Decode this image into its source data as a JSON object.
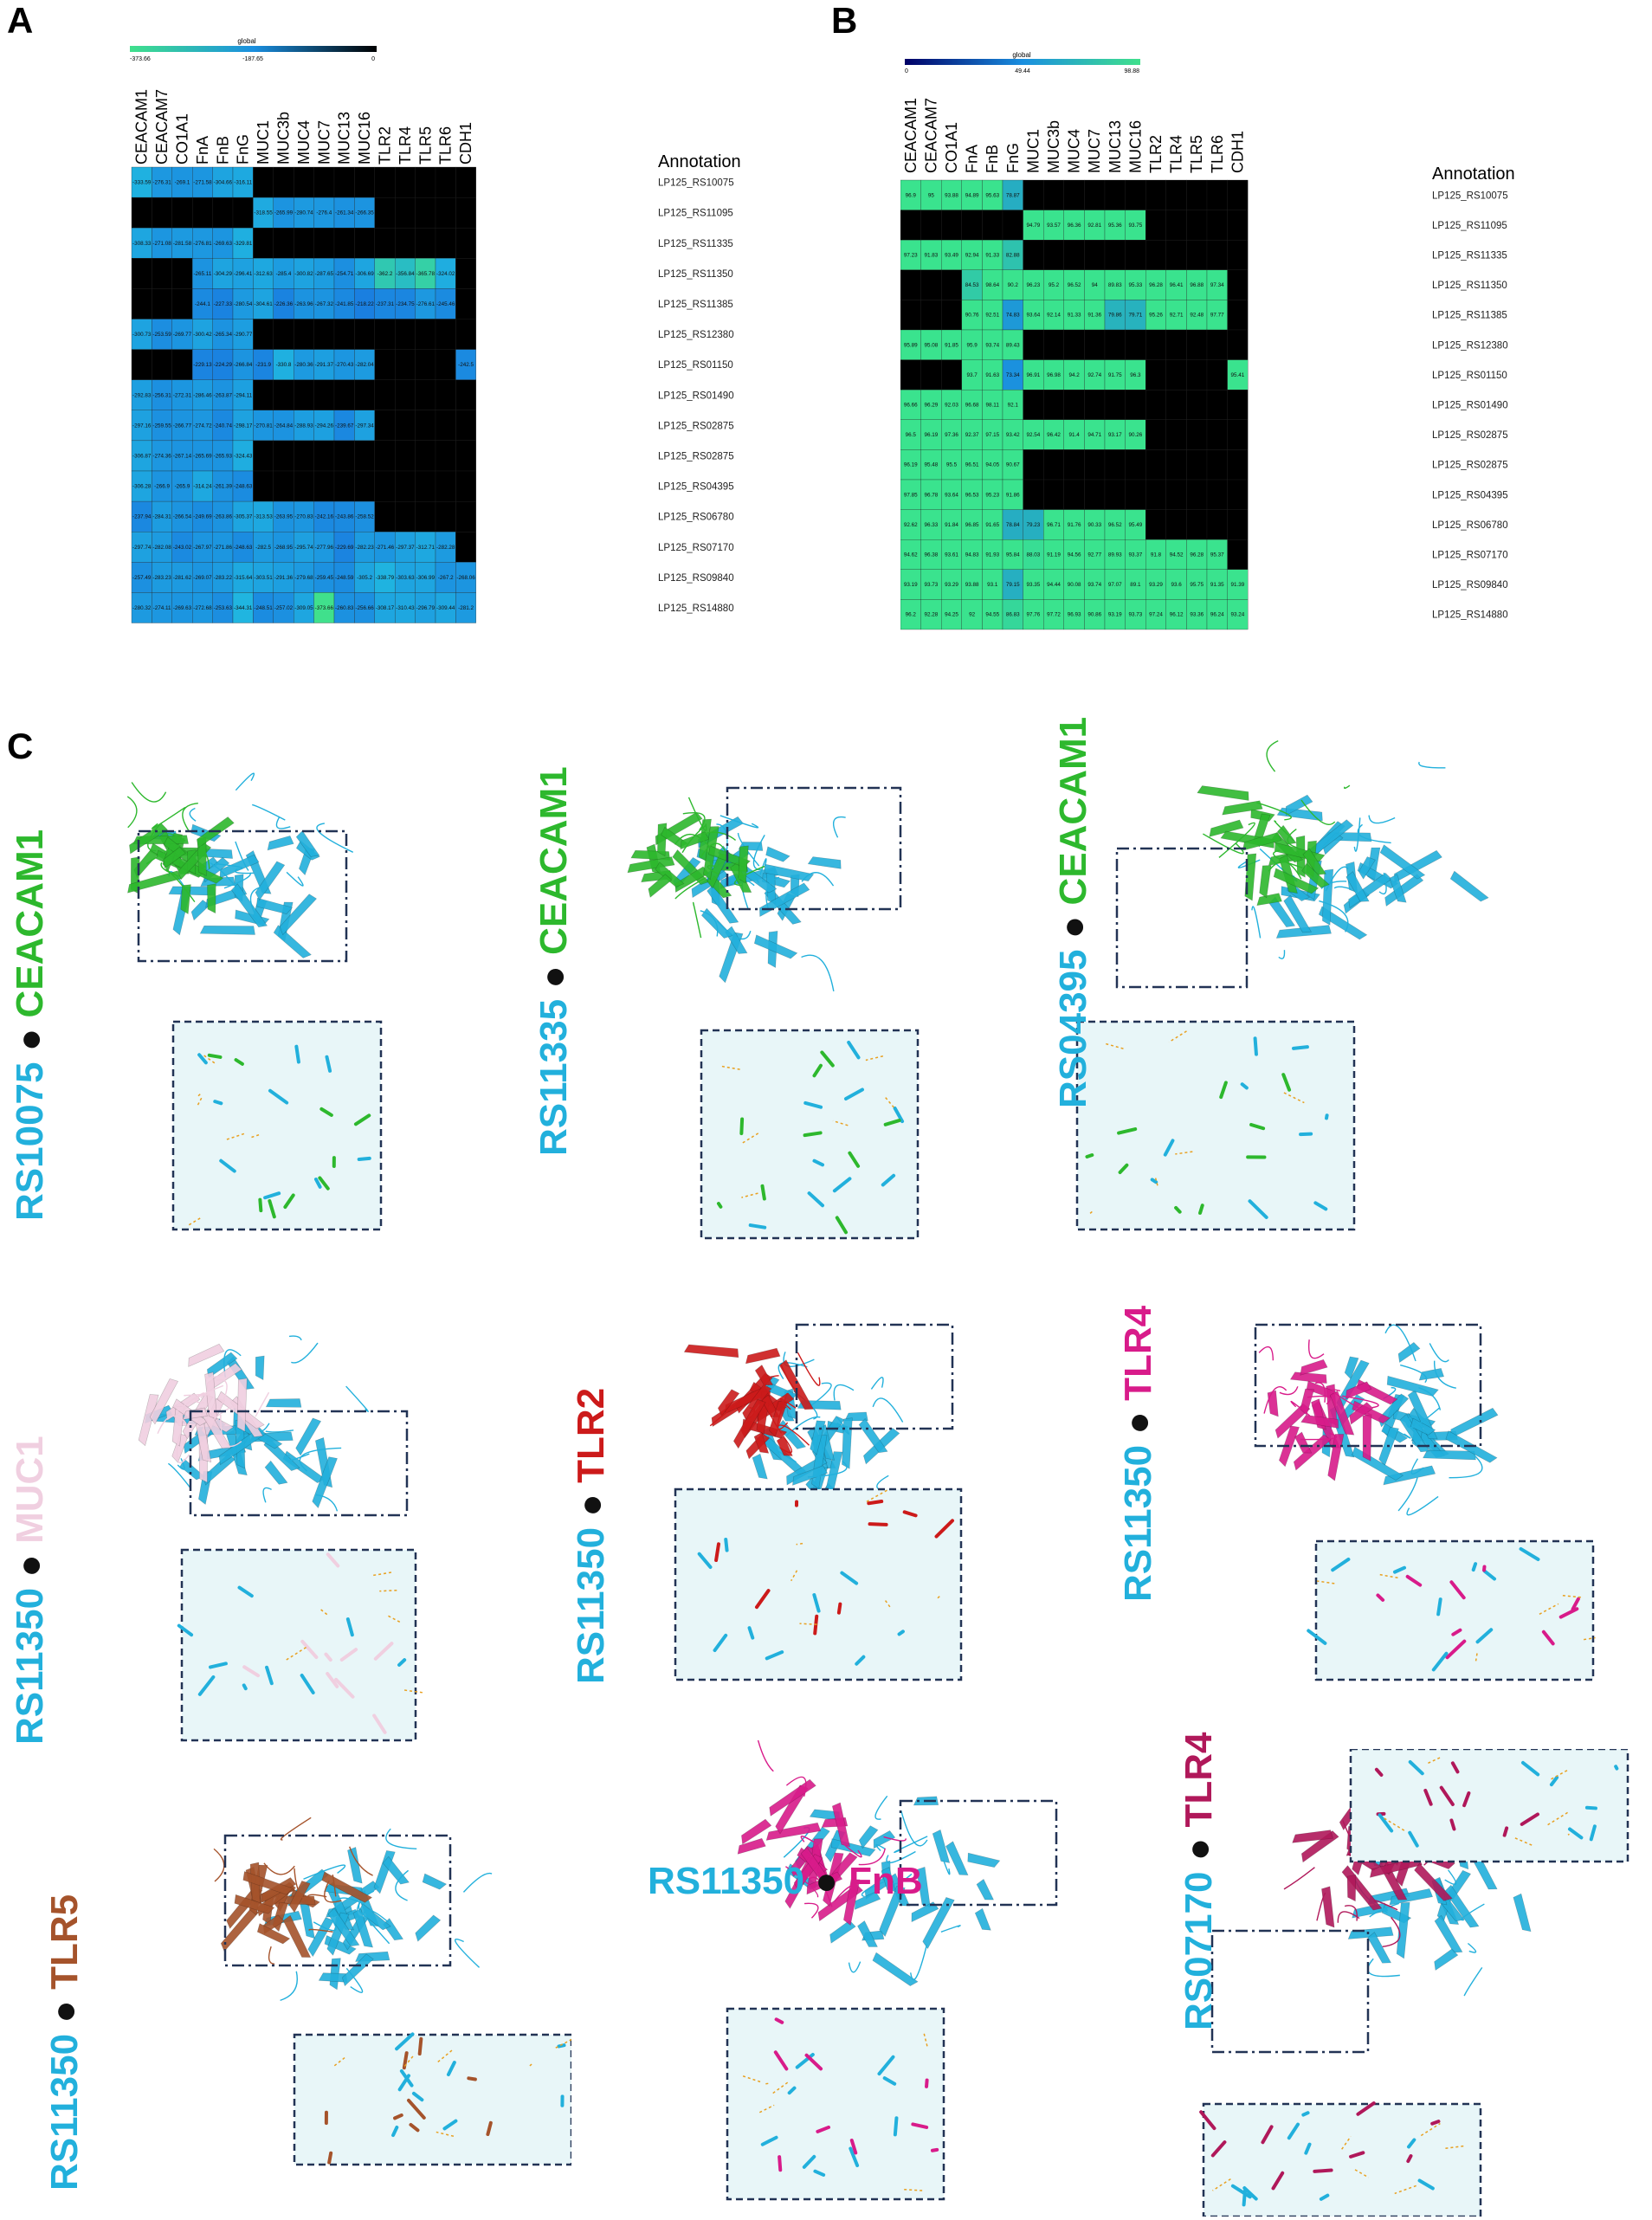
{
  "panels": {
    "a": "A",
    "b": "B",
    "c": "C"
  },
  "legend_a": {
    "title": "global",
    "min": "-373.66",
    "mid": "-187.65",
    "max": "0"
  },
  "legend_b": {
    "title": "global",
    "min": "0",
    "mid": "49.44",
    "max": "98.88"
  },
  "annotation_header": "Annotation",
  "chart_data": [
    {
      "type": "heatmap",
      "colormap": {
        "low": "#40e08c",
        "mid": "#1a8fe0",
        "high": "#000000"
      },
      "legend_range": [
        -373.66,
        0
      ],
      "columns": [
        "CEACAM1",
        "CEACAM7",
        "CO1A1",
        "FnA",
        "FnB",
        "FnG",
        "MUC1",
        "MUC3b",
        "MUC4",
        "MUC7",
        "MUC13",
        "MUC16",
        "TLR2",
        "TLR4",
        "TLR5",
        "TLR6",
        "CDH1"
      ],
      "rows": [
        "LP125_RS10075",
        "LP125_RS11095",
        "LP125_RS11335",
        "LP125_RS11350",
        "LP125_RS11385",
        "LP125_RS12380",
        "LP125_RS01150",
        "LP125_RS01490",
        "LP125_RS02875",
        "LP125_RS02875",
        "LP125_RS04395",
        "LP125_RS06780",
        "LP125_RS07170",
        "LP125_RS09840",
        "LP125_RS14880"
      ],
      "values": [
        [
          -333.59,
          -276.31,
          -269.1,
          -271.58,
          -304.66,
          -316.11,
          0,
          0,
          0,
          0,
          0,
          0,
          0,
          0,
          0,
          0,
          0
        ],
        [
          0,
          0,
          0,
          0,
          0,
          0,
          -318.55,
          -265.99,
          -280.74,
          -276.4,
          -261.34,
          -266.35,
          0,
          0,
          0,
          0,
          0
        ],
        [
          -308.33,
          -271.08,
          -281.58,
          -276.81,
          -269.63,
          -329.81,
          0,
          0,
          0,
          0,
          0,
          0,
          0,
          0,
          0,
          0,
          0
        ],
        [
          0,
          0,
          0,
          -265.11,
          -304.29,
          -296.41,
          -312.63,
          -285.4,
          -300.82,
          -287.65,
          -254.71,
          -306.69,
          -362.2,
          -356.84,
          -365.78,
          -324.02,
          0
        ],
        [
          0,
          0,
          0,
          -244.1,
          -227.33,
          -280.54,
          -304.61,
          -226.36,
          -263.96,
          -267.32,
          -241.85,
          -218.22,
          -237.31,
          -234.75,
          -276.61,
          -245.46,
          0
        ],
        [
          -300.73,
          -253.59,
          -269.77,
          -300.42,
          -265.34,
          -290.77,
          0,
          0,
          0,
          0,
          0,
          0,
          0,
          0,
          0,
          0,
          0
        ],
        [
          0,
          0,
          0,
          -229.13,
          -224.29,
          -266.84,
          -231.9,
          -330.8,
          -280.36,
          -291.37,
          -270.43,
          -282.04,
          0,
          0,
          0,
          0,
          -242.5
        ],
        [
          -292.83,
          -256.31,
          -272.31,
          -286.46,
          -263.87,
          -294.11,
          0,
          0,
          0,
          0,
          0,
          0,
          0,
          0,
          0,
          0,
          0
        ],
        [
          -297.16,
          -259.55,
          -266.77,
          -274.72,
          -240.74,
          -298.17,
          -270.81,
          -264.84,
          -288.93,
          -294.26,
          -239.67,
          -297.34,
          0,
          0,
          0,
          0,
          0
        ],
        [
          -306.87,
          -274.36,
          -267.14,
          -265.69,
          -265.93,
          -324.43,
          0,
          0,
          0,
          0,
          0,
          0,
          0,
          0,
          0,
          0,
          0
        ],
        [
          -306.28,
          -266.9,
          -265.9,
          -314.24,
          -261.39,
          -248.63,
          0,
          0,
          0,
          0,
          0,
          0,
          0,
          0,
          0,
          0,
          0
        ],
        [
          -237.94,
          -284.31,
          -266.54,
          -249.69,
          -263.86,
          -305.37,
          -313.53,
          -263.95,
          -270.83,
          -242.16,
          -243.86,
          -258.52,
          0,
          0,
          0,
          0,
          0
        ],
        [
          -297.74,
          -282.08,
          -243.02,
          -267.97,
          -271.86,
          -248.63,
          -282.5,
          -268.95,
          -295.74,
          -277.96,
          -229.69,
          -282.23,
          -271.46,
          -297.37,
          -312.71,
          -282.28,
          0
        ],
        [
          -257.49,
          -283.23,
          -281.62,
          -269.07,
          -283.22,
          -315.64,
          -303.51,
          -291.36,
          -279.68,
          -259.45,
          -248.59,
          -305.2,
          -338.79,
          -303.63,
          -306.99,
          -267.2,
          -268.06
        ],
        [
          -280.32,
          -274.11,
          -269.63,
          -272.68,
          -253.63,
          -344.31,
          -248.51,
          -257.02,
          -309.05,
          -373.66,
          -260.83,
          -256.66,
          -308.17,
          -310.43,
          -296.79,
          -309.44,
          -281.2
        ]
      ]
    },
    {
      "type": "heatmap",
      "colormap": {
        "low": "#000000",
        "mid": "#1a8fe0",
        "high": "#40e08c"
      },
      "legend_range": [
        0,
        98.88
      ],
      "columns": [
        "CEACAM1",
        "CEACAM7",
        "CO1A1",
        "FnA",
        "FnB",
        "FnG",
        "MUC1",
        "MUC3b",
        "MUC4",
        "MUC7",
        "MUC13",
        "MUC16",
        "TLR2",
        "TLR4",
        "TLR5",
        "TLR6",
        "CDH1"
      ],
      "rows": [
        "LP125_RS10075",
        "LP125_RS11095",
        "LP125_RS11335",
        "LP125_RS11350",
        "LP125_RS11385",
        "LP125_RS12380",
        "LP125_RS01150",
        "LP125_RS01490",
        "LP125_RS02875",
        "LP125_RS02875",
        "LP125_RS04395",
        "LP125_RS06780",
        "LP125_RS07170",
        "LP125_RS09840",
        "LP125_RS14880"
      ],
      "values": [
        [
          96.9,
          95,
          93.88,
          94.89,
          95.63,
          78.87,
          0,
          0,
          0,
          0,
          0,
          0,
          0,
          0,
          0,
          0,
          0
        ],
        [
          0,
          0,
          0,
          0,
          0,
          0,
          94.79,
          93.57,
          96.36,
          92.81,
          95.36,
          93.75,
          0,
          0,
          0,
          0,
          0
        ],
        [
          97.23,
          91.83,
          93.49,
          92.94,
          91.33,
          82.88,
          0,
          0,
          0,
          0,
          0,
          0,
          0,
          0,
          0,
          0,
          0
        ],
        [
          0,
          0,
          0,
          84.53,
          98.64,
          90.2,
          96.23,
          95.2,
          96.52,
          94,
          89.83,
          95.33,
          96.28,
          96.41,
          96.88,
          97.34,
          0
        ],
        [
          0,
          0,
          0,
          90.76,
          92.51,
          74.83,
          93.64,
          92.14,
          91.33,
          91.36,
          79.86,
          79.71,
          95.26,
          92.71,
          92.48,
          97.77,
          0
        ],
        [
          95.89,
          95.08,
          91.85,
          95.9,
          93.74,
          89.43,
          0,
          0,
          0,
          0,
          0,
          0,
          0,
          0,
          0,
          0,
          0
        ],
        [
          0,
          0,
          0,
          93.7,
          91.63,
          73.34,
          96.91,
          96.98,
          94.2,
          92.74,
          91.75,
          96.3,
          0,
          0,
          0,
          0,
          95.41
        ],
        [
          96.66,
          96.29,
          92.03,
          96.68,
          98.11,
          92.1,
          0,
          0,
          0,
          0,
          0,
          0,
          0,
          0,
          0,
          0,
          0
        ],
        [
          96.5,
          96.19,
          97.36,
          92.37,
          97.15,
          93.42,
          92.54,
          96.42,
          91.4,
          94.71,
          93.17,
          90.26,
          0,
          0,
          0,
          0,
          0
        ],
        [
          96.19,
          95.48,
          95.5,
          96.51,
          94.05,
          90.67,
          0,
          0,
          0,
          0,
          0,
          0,
          0,
          0,
          0,
          0,
          0
        ],
        [
          97.85,
          96.78,
          93.64,
          96.53,
          95.23,
          91.86,
          0,
          0,
          0,
          0,
          0,
          0,
          0,
          0,
          0,
          0,
          0
        ],
        [
          92.62,
          96.33,
          91.84,
          96.85,
          91.65,
          78.84,
          79.23,
          96.71,
          91.76,
          90.33,
          96.52,
          95.49,
          0,
          0,
          0,
          0,
          0
        ],
        [
          94.62,
          96.38,
          93.61,
          94.83,
          91.93,
          95.84,
          88.03,
          91.19,
          94.56,
          92.77,
          89.93,
          93.37,
          91.8,
          94.52,
          96.28,
          95.37,
          0
        ],
        [
          93.19,
          93.73,
          93.29,
          93.88,
          93.1,
          79.15,
          93.35,
          94.44,
          90.08,
          93.74,
          97.07,
          89.1,
          93.29,
          93.6,
          95.75,
          91.35,
          91.39
        ],
        [
          96.2,
          92.28,
          94.25,
          92,
          94.55,
          86.83,
          97.76,
          97.72,
          96.93,
          90.86,
          93.19,
          93.73,
          97.24,
          96.12,
          93.36,
          96.24,
          93.24
        ]
      ]
    }
  ],
  "structures": [
    {
      "prot": "RS10075",
      "partner": "CEACAM1",
      "partner_color": "#2db82d"
    },
    {
      "prot": "RS11335",
      "partner": "CEACAM1",
      "partner_color": "#2db82d"
    },
    {
      "prot": "RS04395",
      "partner": "CEACAM1",
      "partner_color": "#2db82d"
    },
    {
      "prot": "RS11350",
      "partner": "MUC1",
      "partner_color": "#f0cfe0"
    },
    {
      "prot": "RS11350",
      "partner": "TLR2",
      "partner_color": "#cc1a1a"
    },
    {
      "prot": "RS11350",
      "partner": "TLR4",
      "partner_color": "#d81b8a"
    },
    {
      "prot": "RS11350",
      "partner": "TLR5",
      "partner_color": "#a5532b"
    },
    {
      "prot": "RS11350",
      "partner": "FnB",
      "partner_color": "#d81b8a"
    },
    {
      "prot": "RS07170",
      "partner": "TLR4",
      "partner_color": "#b0185a"
    }
  ],
  "dot": "●",
  "prot_color": "#22b0dc"
}
